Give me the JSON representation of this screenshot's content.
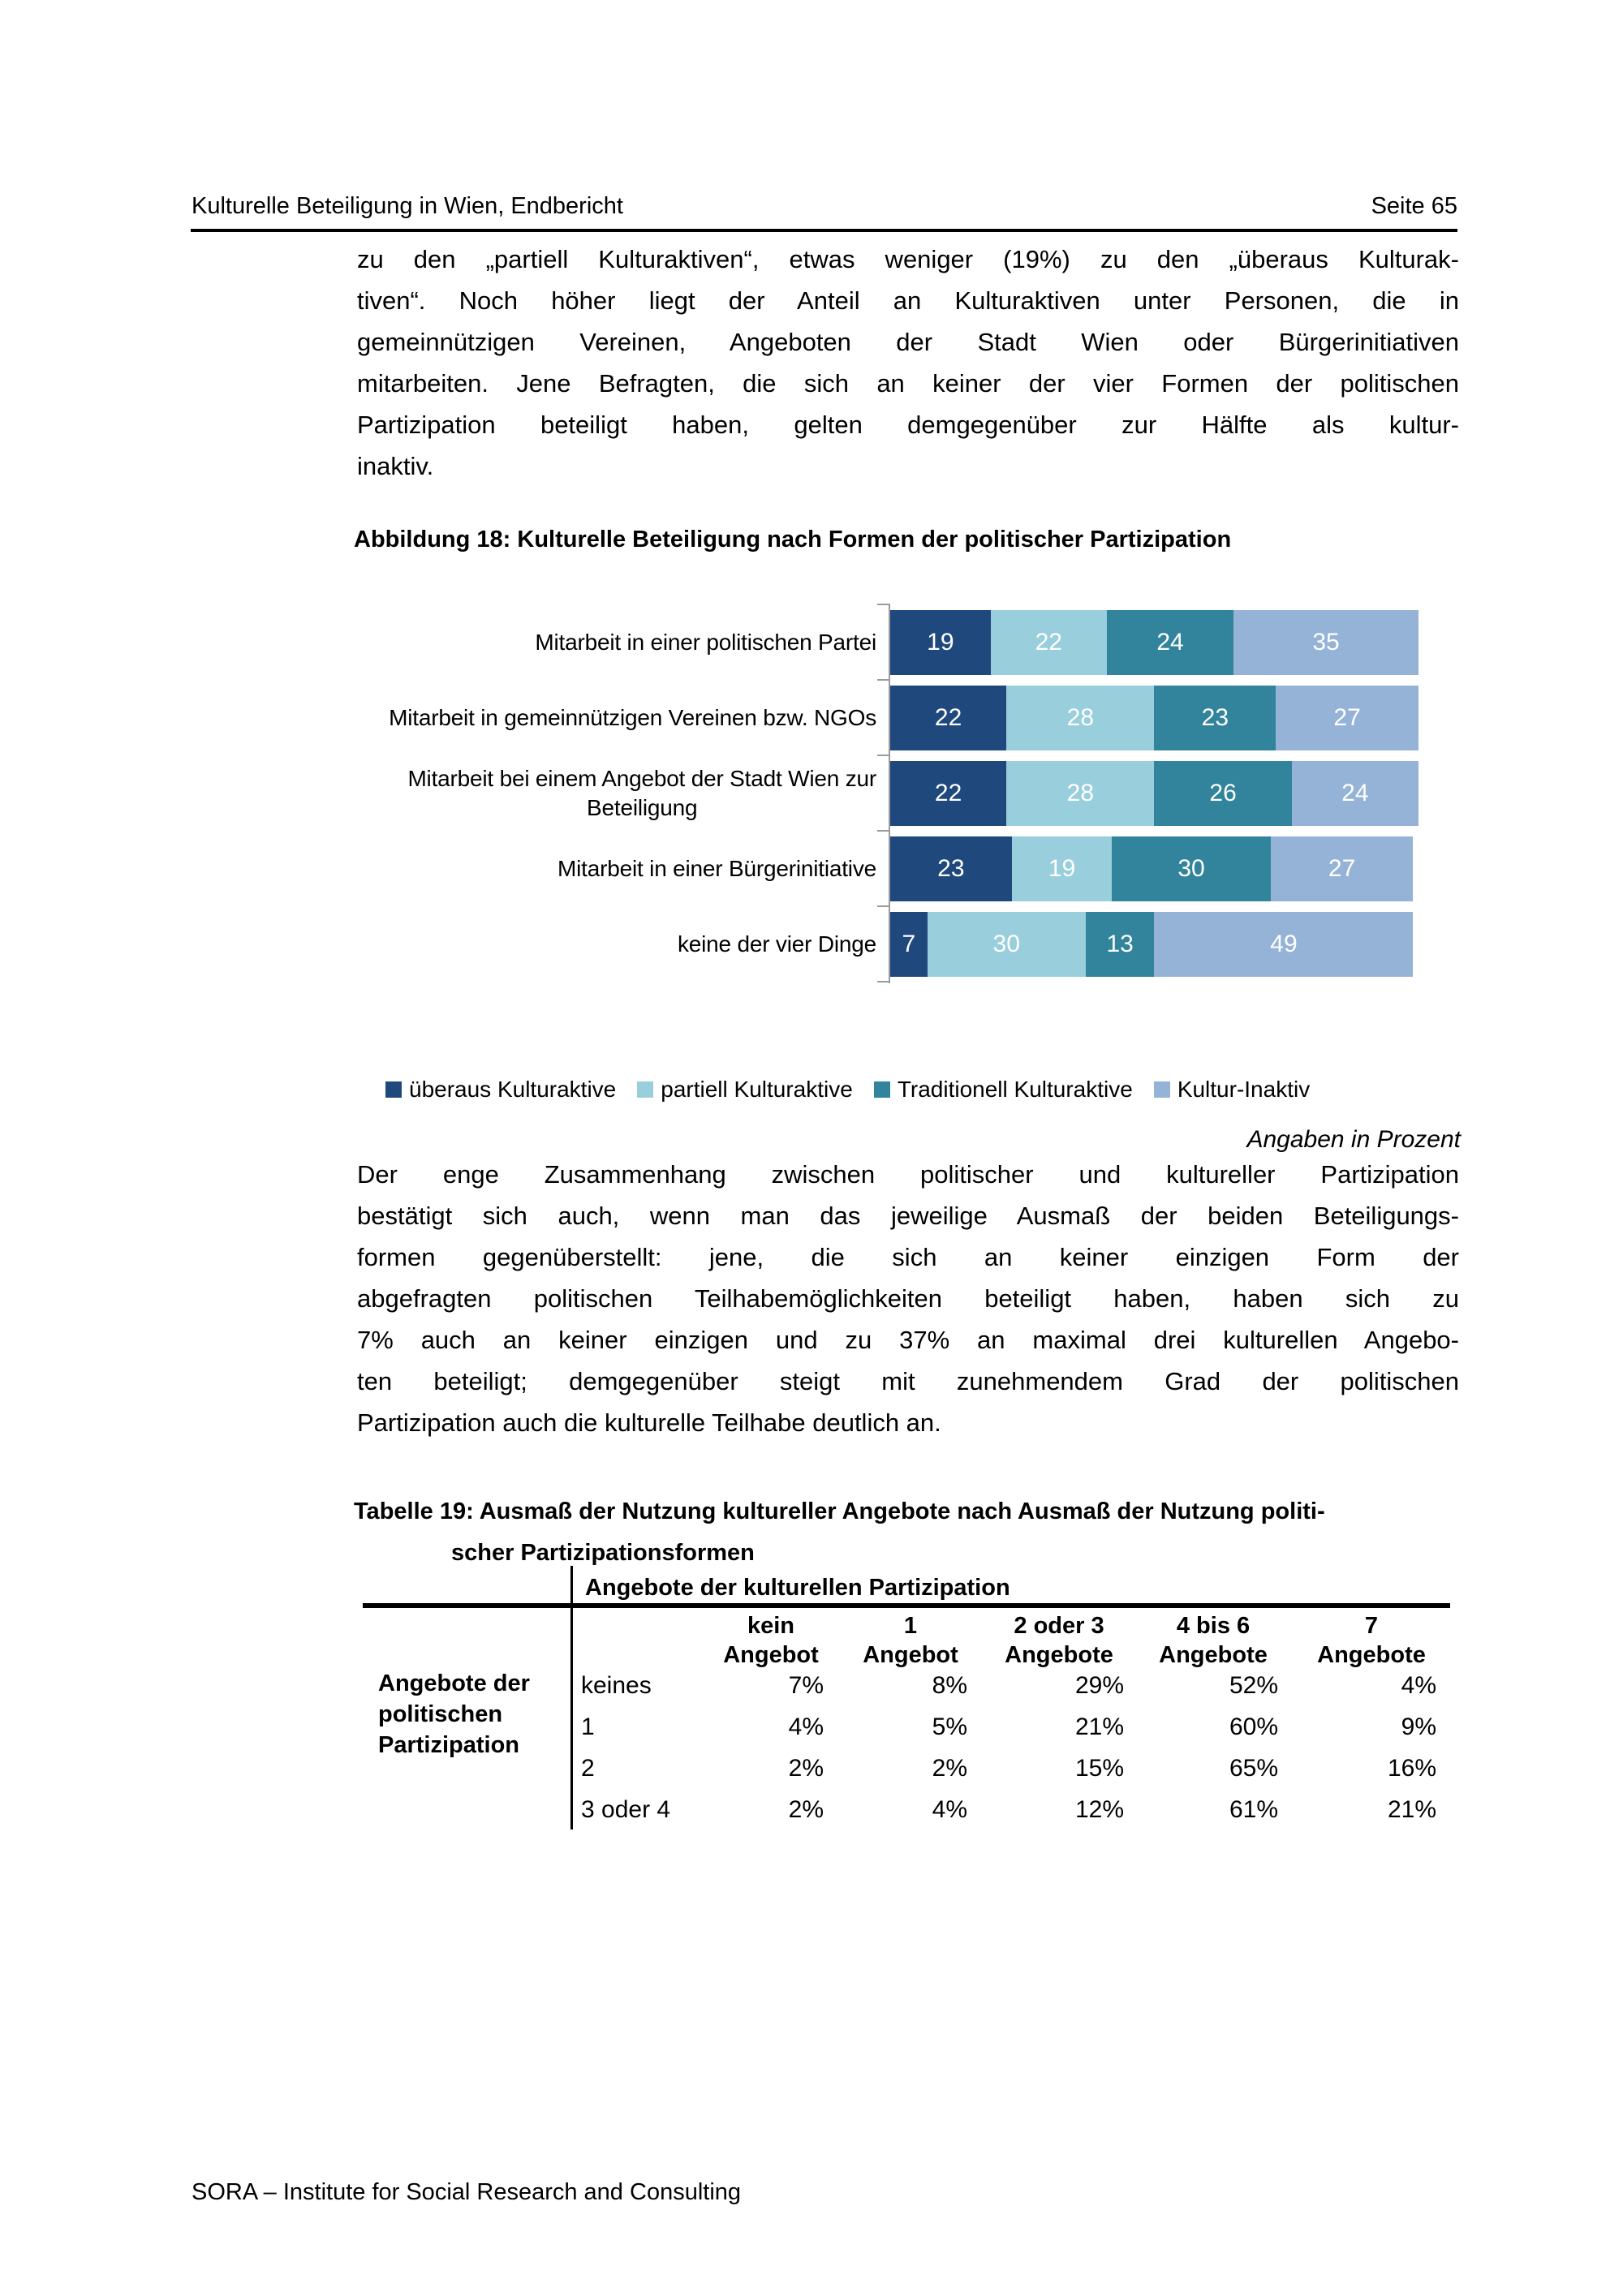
{
  "header": {
    "title": "Kulturelle Beteiligung in Wien, Endbericht",
    "page": "Seite 65"
  },
  "paragraphs": {
    "p1": [
      "zu den „partiell Kulturaktiven“, etwas weniger (19%) zu den „überaus Kulturak-",
      "tiven“. Noch höher liegt der Anteil an Kulturaktiven unter Personen, die in",
      "gemeinnützigen Vereinen, Angeboten der Stadt Wien oder Bürgerinitiativen",
      "mitarbeiten. Jene Befragten, die sich an keiner der vier Formen der politischen",
      "Partizipation beteiligt haben, gelten demgegenüber zur Hälfte als kultur-",
      "inaktiv."
    ],
    "p2": [
      "Der enge Zusammenhang zwischen politischer und kultureller Partizipation",
      "bestätigt sich auch, wenn man das jeweilige Ausmaß der beiden Beteiligungs-",
      "formen gegenüberstellt: jene, die sich an keiner einzigen Form der",
      "abgefragten politischen Teilhabemöglichkeiten beteiligt haben, haben sich zu",
      "7% auch an keiner einzigen und zu 37% an maximal drei kulturellen Angebo-",
      "ten beteiligt; demgegenüber steigt mit zunehmendem Grad der politischen",
      "Partizipation auch die kulturelle Teilhabe deutlich an."
    ]
  },
  "figure": {
    "caption": "Abbildung 18: Kulturelle Beteiligung nach Formen der politischer Partizipation",
    "note": "Angaben in Prozent"
  },
  "chart_data": {
    "type": "bar",
    "orientation": "horizontal_stacked",
    "x_max": 100,
    "value_labels": "inside_white",
    "legend_position": "bottom",
    "grid": false,
    "categories": [
      [
        "Mitarbeit in einer politischen Partei"
      ],
      [
        "Mitarbeit in gemeinnützigen Vereinen bzw. NGOs"
      ],
      [
        "Mitarbeit bei einem Angebot der Stadt Wien zur",
        "Beteiligung"
      ],
      [
        "Mitarbeit in einer Bürgerinitiative"
      ],
      [
        "keine der vier Dinge"
      ]
    ],
    "series": [
      {
        "name": "überaus Kulturaktive",
        "color": "#1F497D",
        "values": [
          19,
          22,
          22,
          23,
          7
        ]
      },
      {
        "name": "partiell Kulturaktive",
        "color": "#99CEDC",
        "values": [
          22,
          28,
          28,
          19,
          30
        ]
      },
      {
        "name": "Traditionell Kulturaktive",
        "color": "#31849B",
        "values": [
          24,
          23,
          26,
          30,
          13
        ]
      },
      {
        "name": "Kultur-Inaktiv",
        "color": "#95B3D7",
        "values": [
          35,
          27,
          24,
          27,
          49
        ]
      }
    ]
  },
  "table": {
    "caption_lines": [
      "Tabelle 19: Ausmaß der Nutzung kultureller Angebote nach Ausmaß der Nutzung politi-",
      "scher Partizipationsformen"
    ],
    "column_group_header": "Angebote der kulturellen Partizipation",
    "row_group_header_lines": [
      "Angebote der",
      "politischen",
      "Partizipation"
    ],
    "column_headers": [
      [
        "kein",
        "Angebot"
      ],
      [
        "1",
        "Angebot"
      ],
      [
        "2 oder 3",
        "Angebote"
      ],
      [
        "4 bis 6",
        "Angebote"
      ],
      [
        "7",
        "Angebote"
      ]
    ],
    "rows": [
      {
        "label": "keines",
        "values": [
          "7%",
          "8%",
          "29%",
          "52%",
          "4%"
        ]
      },
      {
        "label": "1",
        "values": [
          "4%",
          "5%",
          "21%",
          "60%",
          "9%"
        ]
      },
      {
        "label": "2",
        "values": [
          "2%",
          "2%",
          "15%",
          "65%",
          "16%"
        ]
      },
      {
        "label": "3 oder 4",
        "values": [
          "2%",
          "4%",
          "12%",
          "61%",
          "21%"
        ]
      }
    ]
  },
  "footer": "SORA – Institute for Social Research and Consulting"
}
